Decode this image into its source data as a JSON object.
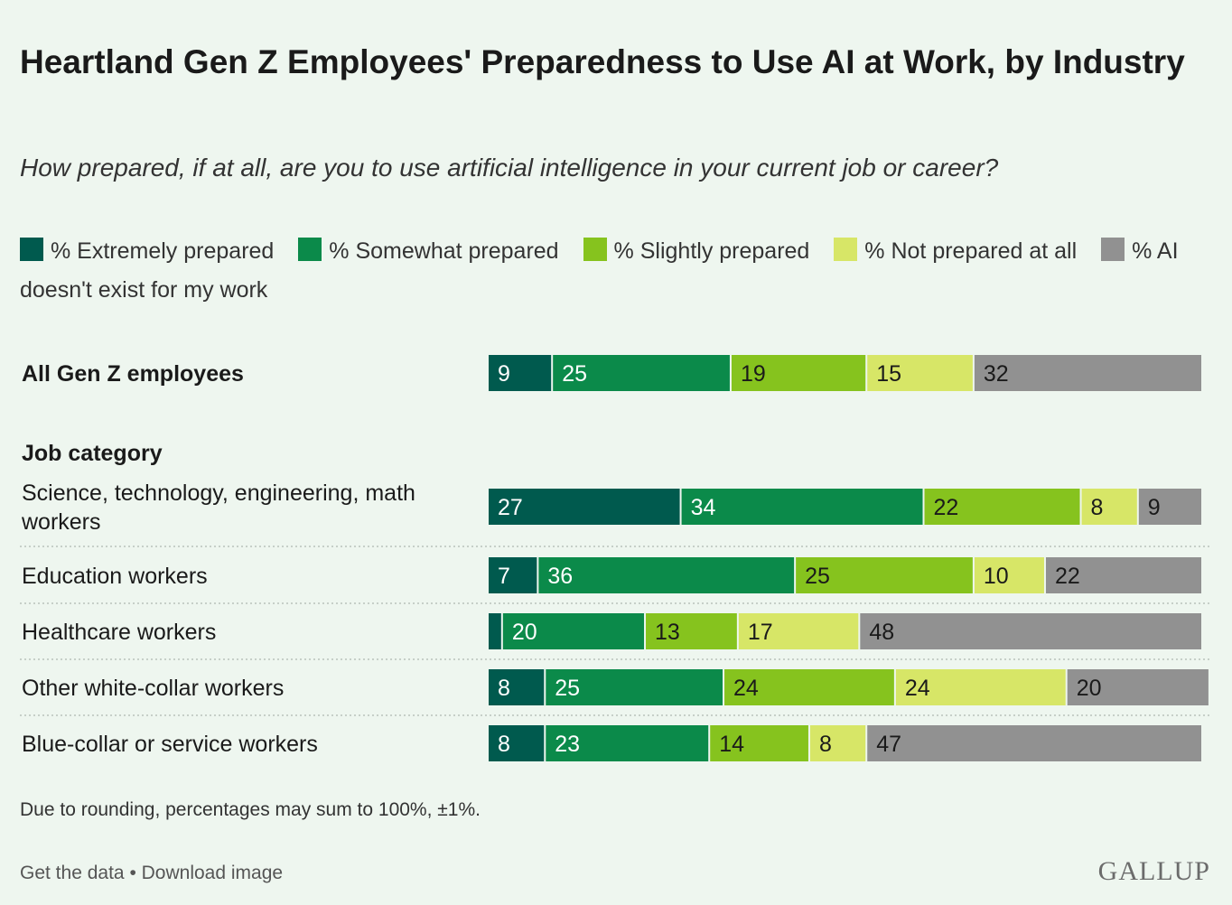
{
  "title": "Heartland Gen Z Employees' Preparedness to Use AI at Work, by Industry",
  "subtitle": "How prepared, if at all, are you to use artificial intelligence in your current job or career?",
  "footnote": "Due to rounding, percentages may sum to 100%, ±1%.",
  "links": {
    "get_data": "Get the data",
    "separator": "•",
    "download": "Download image"
  },
  "logo": "GALLUP",
  "colors": {
    "background": "#eef6ef",
    "extremely": "#005a4e",
    "somewhat": "#0b8a4a",
    "slightly": "#86c31e",
    "not_prepared": "#d7e667",
    "na": "#919191"
  },
  "chart_data": {
    "type": "stacked-bar-horizontal",
    "title": "Heartland Gen Z Employees' Preparedness to Use AI at Work, by Industry",
    "subtitle": "How prepared, if at all, are you to use artificial intelligence in your current job or career?",
    "legend": [
      {
        "label": "% Extremely prepared",
        "color": "#005a4e"
      },
      {
        "label": "% Somewhat prepared",
        "color": "#0b8a4a"
      },
      {
        "label": "% Slightly prepared",
        "color": "#86c31e"
      },
      {
        "label": "% Not prepared at all",
        "color": "#d7e667"
      },
      {
        "label": "% AI doesn't exist for my work",
        "color": "#919191"
      }
    ],
    "section_label": "Job category",
    "rows": [
      {
        "label": "All Gen Z employees",
        "bold": true,
        "values": [
          9,
          25,
          19,
          15,
          32
        ],
        "labels": [
          "9",
          "25",
          "19",
          "15",
          "32"
        ]
      },
      {
        "label": "Science, technology, engineering, math workers",
        "values": [
          27,
          34,
          22,
          8,
          9
        ],
        "labels": [
          "27",
          "34",
          "22",
          "8",
          "9"
        ]
      },
      {
        "label": "Education workers",
        "values": [
          7,
          36,
          25,
          10,
          22
        ],
        "labels": [
          "7",
          "36",
          "25",
          "10",
          "22"
        ]
      },
      {
        "label": "Healthcare workers",
        "values": [
          2,
          20,
          13,
          17,
          48
        ],
        "labels": [
          "",
          "20",
          "13",
          "17",
          "48"
        ]
      },
      {
        "label": "Other white-collar workers",
        "values": [
          8,
          25,
          24,
          24,
          20
        ],
        "labels": [
          "8",
          "25",
          "24",
          "24",
          "20"
        ]
      },
      {
        "label": "Blue-collar or service workers",
        "values": [
          8,
          23,
          14,
          8,
          47
        ],
        "labels": [
          "8",
          "23",
          "14",
          "8",
          "47"
        ]
      }
    ]
  }
}
